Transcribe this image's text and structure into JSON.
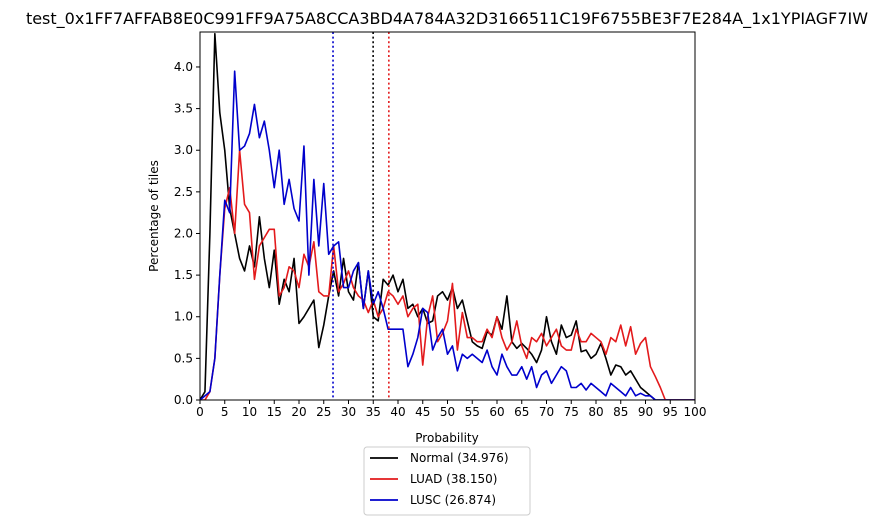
{
  "chart_data": {
    "type": "line",
    "title": "test_0x1FF7AFFAB8E0C991FF9A75A8CCA3BD4A784A32D3166511C19F6755BE3F7E284A_1x1YPIAGF7IW",
    "xlabel": "Probability",
    "ylabel": "Percentage of tiles",
    "xlim": [
      0,
      100
    ],
    "ylim": [
      0,
      4.42
    ],
    "x_ticks": [
      0,
      5,
      10,
      15,
      20,
      25,
      30,
      35,
      40,
      45,
      50,
      55,
      60,
      65,
      70,
      75,
      80,
      85,
      90,
      95,
      100
    ],
    "y_ticks": [
      0.0,
      0.5,
      1.0,
      1.5,
      2.0,
      2.5,
      3.0,
      3.5,
      4.0
    ],
    "legend_position": "below-center",
    "series": [
      {
        "name": "Normal (34.976)",
        "color": "#000000",
        "mean_line": 34.976,
        "x": [
          0,
          1,
          2,
          3,
          4,
          5,
          6,
          7,
          8,
          9,
          10,
          11,
          12,
          13,
          14,
          15,
          16,
          17,
          18,
          19,
          20,
          21,
          22,
          23,
          24,
          25,
          26,
          27,
          28,
          29,
          30,
          31,
          32,
          33,
          34,
          35,
          36,
          37,
          38,
          39,
          40,
          41,
          42,
          43,
          44,
          45,
          46,
          47,
          48,
          49,
          50,
          51,
          52,
          53,
          54,
          55,
          56,
          57,
          58,
          59,
          60,
          61,
          62,
          63,
          64,
          65,
          66,
          67,
          68,
          69,
          70,
          71,
          72,
          73,
          74,
          75,
          76,
          77,
          78,
          79,
          80,
          81,
          82,
          83,
          84,
          85,
          86,
          87,
          88,
          89,
          90,
          91,
          92,
          93,
          94,
          95,
          96,
          97,
          98,
          99,
          100
        ],
        "values": [
          0,
          0.1,
          2.0,
          4.4,
          3.45,
          3.0,
          2.3,
          2.0,
          1.7,
          1.55,
          1.85,
          1.6,
          2.2,
          1.7,
          1.35,
          1.8,
          1.15,
          1.45,
          1.3,
          1.7,
          0.92,
          1.0,
          1.1,
          1.2,
          0.63,
          0.9,
          1.25,
          1.55,
          1.25,
          1.7,
          1.3,
          1.2,
          1.65,
          1.1,
          1.55,
          1.0,
          0.95,
          1.45,
          1.38,
          1.5,
          1.3,
          1.45,
          1.1,
          1.15,
          1.0,
          1.1,
          0.92,
          0.95,
          1.25,
          1.3,
          1.2,
          1.35,
          1.1,
          1.2,
          0.95,
          0.7,
          0.65,
          0.62,
          0.82,
          0.78,
          1.0,
          0.85,
          1.25,
          0.7,
          0.62,
          0.68,
          0.62,
          0.55,
          0.45,
          0.6,
          1.0,
          0.7,
          0.55,
          0.9,
          0.75,
          0.78,
          0.95,
          0.58,
          0.6,
          0.5,
          0.55,
          0.68,
          0.5,
          0.3,
          0.42,
          0.4,
          0.3,
          0.35,
          0.25,
          0.15,
          0.1,
          0.05,
          0,
          0,
          0,
          0,
          0,
          0,
          0,
          0,
          0
        ]
      },
      {
        "name": "LUAD (38.150)",
        "color": "#e31a1c",
        "mean_line": 38.15,
        "x": [
          0,
          1,
          2,
          3,
          4,
          5,
          6,
          7,
          8,
          9,
          10,
          11,
          12,
          13,
          14,
          15,
          16,
          17,
          18,
          19,
          20,
          21,
          22,
          23,
          24,
          25,
          26,
          27,
          28,
          29,
          30,
          31,
          32,
          33,
          34,
          35,
          36,
          37,
          38,
          39,
          40,
          41,
          42,
          43,
          44,
          45,
          46,
          47,
          48,
          49,
          50,
          51,
          52,
          53,
          54,
          55,
          56,
          57,
          58,
          59,
          60,
          61,
          62,
          63,
          64,
          65,
          66,
          67,
          68,
          69,
          70,
          71,
          72,
          73,
          74,
          75,
          76,
          77,
          78,
          79,
          80,
          81,
          82,
          83,
          84,
          85,
          86,
          87,
          88,
          89,
          90,
          91,
          92,
          93,
          94,
          95,
          96,
          97,
          98,
          99,
          100
        ],
        "values": [
          0,
          0,
          0.1,
          0.5,
          1.5,
          2.3,
          2.55,
          2.0,
          3.0,
          2.35,
          2.25,
          1.45,
          1.85,
          1.95,
          2.05,
          2.05,
          1.25,
          1.35,
          1.6,
          1.55,
          1.35,
          1.75,
          1.6,
          1.9,
          1.3,
          1.25,
          1.25,
          1.85,
          1.3,
          1.4,
          1.55,
          1.35,
          1.25,
          1.2,
          1.05,
          1.2,
          1.0,
          1.1,
          1.3,
          1.25,
          1.15,
          1.25,
          1.0,
          1.1,
          1.15,
          0.42,
          1.0,
          1.25,
          0.7,
          0.8,
          0.95,
          1.4,
          0.6,
          1.05,
          0.75,
          0.75,
          0.7,
          0.7,
          0.85,
          0.75,
          1.0,
          0.75,
          0.6,
          0.7,
          0.95,
          0.65,
          0.5,
          0.75,
          0.7,
          0.8,
          0.65,
          0.75,
          0.85,
          0.65,
          0.6,
          0.6,
          0.85,
          0.7,
          0.7,
          0.8,
          0.75,
          0.7,
          0.55,
          0.75,
          0.7,
          0.9,
          0.65,
          0.88,
          0.55,
          0.68,
          0.75,
          0.4,
          0.28,
          0.15,
          0,
          0,
          0,
          0,
          0,
          0,
          0
        ]
      },
      {
        "name": "LUSC (26.874)",
        "color": "#0000cc",
        "mean_line": 26.874,
        "x": [
          0,
          1,
          2,
          3,
          4,
          5,
          6,
          7,
          8,
          9,
          10,
          11,
          12,
          13,
          14,
          15,
          16,
          17,
          18,
          19,
          20,
          21,
          22,
          23,
          24,
          25,
          26,
          27,
          28,
          29,
          30,
          31,
          32,
          33,
          34,
          35,
          36,
          37,
          38,
          39,
          40,
          41,
          42,
          43,
          44,
          45,
          46,
          47,
          48,
          49,
          50,
          51,
          52,
          53,
          54,
          55,
          56,
          57,
          58,
          59,
          60,
          61,
          62,
          63,
          64,
          65,
          66,
          67,
          68,
          69,
          70,
          71,
          72,
          73,
          74,
          75,
          76,
          77,
          78,
          79,
          80,
          81,
          82,
          83,
          84,
          85,
          86,
          87,
          88,
          89,
          90,
          91,
          92,
          93,
          94,
          95,
          96,
          97,
          98,
          99,
          100
        ],
        "values": [
          0,
          0.05,
          0.1,
          0.5,
          1.5,
          2.4,
          2.25,
          3.95,
          3.0,
          3.05,
          3.2,
          3.55,
          3.15,
          3.35,
          3.0,
          2.55,
          3.0,
          2.35,
          2.65,
          2.3,
          2.15,
          3.05,
          1.5,
          2.65,
          1.85,
          2.6,
          1.75,
          1.85,
          1.9,
          1.35,
          1.35,
          1.55,
          1.65,
          1.1,
          1.55,
          1.15,
          1.3,
          1.1,
          0.85,
          0.85,
          0.85,
          0.85,
          0.4,
          0.55,
          0.75,
          1.1,
          1.05,
          0.6,
          0.75,
          0.85,
          0.55,
          0.65,
          0.35,
          0.55,
          0.5,
          0.55,
          0.5,
          0.45,
          0.6,
          0.4,
          0.3,
          0.55,
          0.4,
          0.3,
          0.3,
          0.4,
          0.25,
          0.4,
          0.15,
          0.3,
          0.35,
          0.2,
          0.3,
          0.4,
          0.35,
          0.15,
          0.15,
          0.2,
          0.12,
          0.2,
          0.15,
          0.1,
          0.05,
          0.2,
          0.15,
          0.1,
          0.05,
          0.15,
          0.05,
          0.08,
          0.05,
          0.05,
          0,
          0,
          0,
          0,
          0,
          0,
          0,
          0,
          0
        ]
      }
    ]
  }
}
